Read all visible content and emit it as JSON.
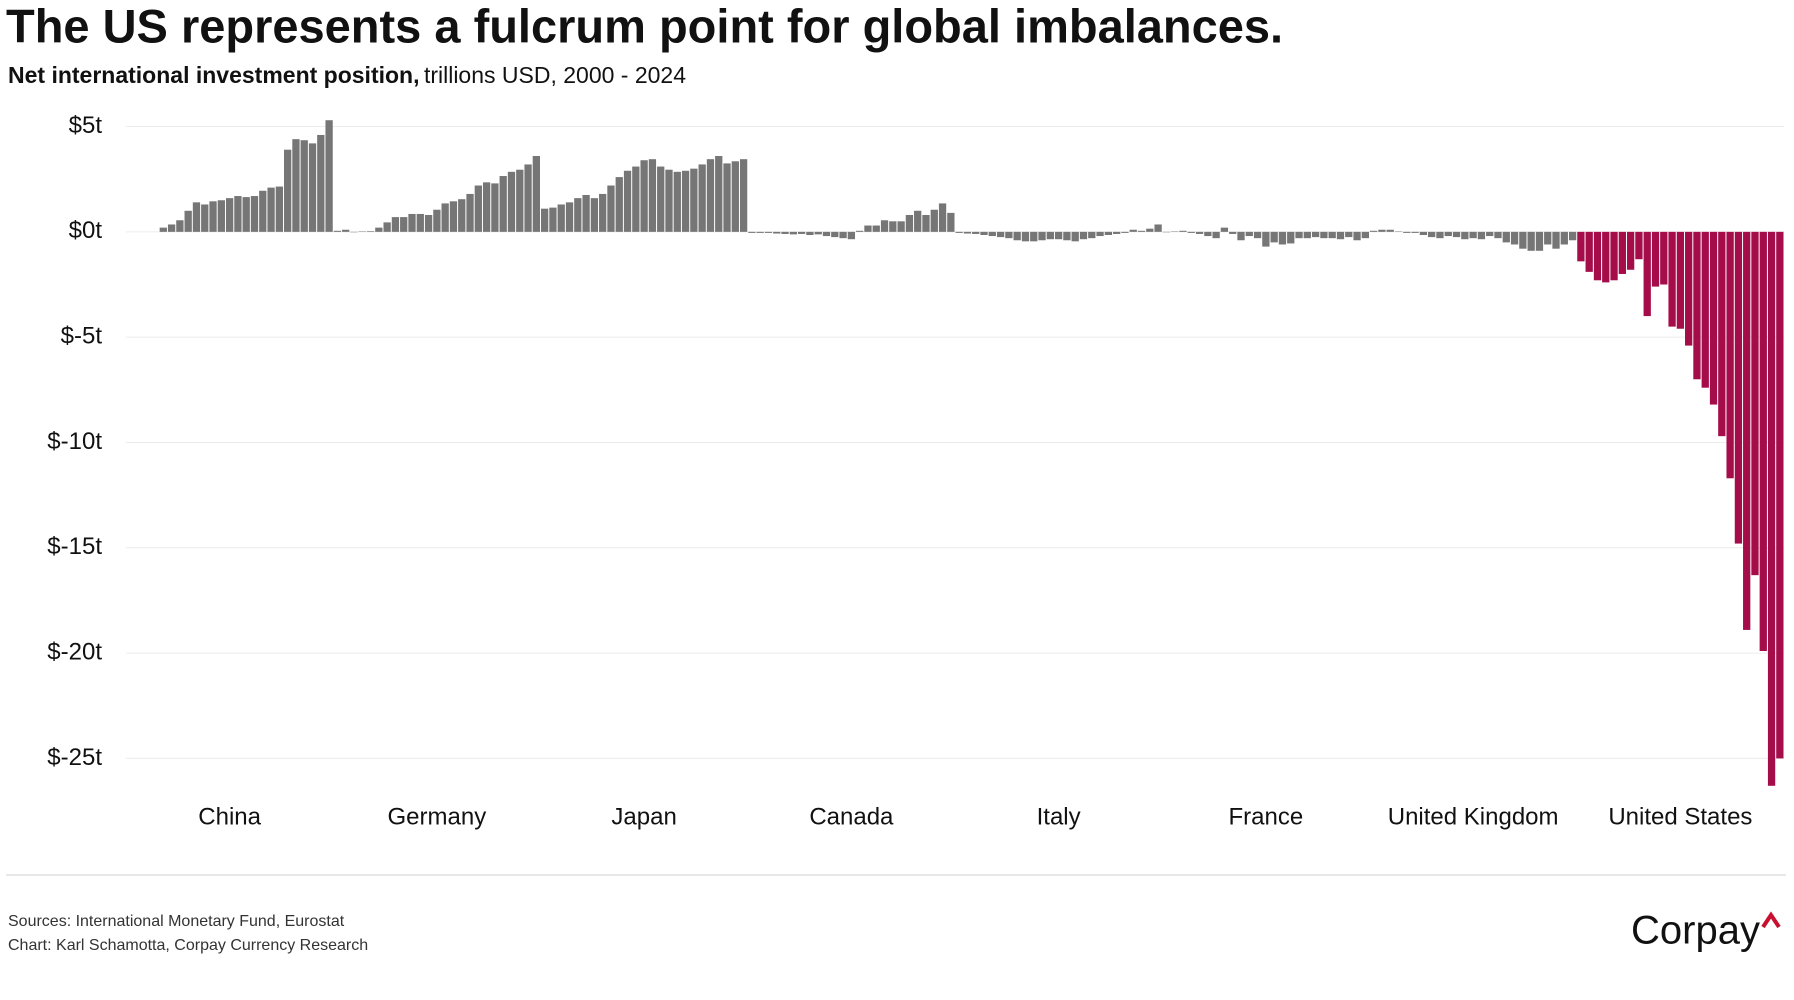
{
  "chart_data": {
    "type": "bar",
    "title": "The US represents a fulcrum point for global imbalances.",
    "subtitle_bold": "Net international investment position,",
    "subtitle": "trillions USD, 2000 - 2024",
    "ylim": [
      -26.5,
      5.5
    ],
    "yticks": [
      {
        "value": 5,
        "label": "$5t"
      },
      {
        "value": 0,
        "label": "$0t"
      },
      {
        "value": -5,
        "label": "$-5t"
      },
      {
        "value": -10,
        "label": "$-10t"
      },
      {
        "value": -15,
        "label": "$-15t"
      },
      {
        "value": -20,
        "label": "$-20t"
      },
      {
        "value": -25,
        "label": "$-25t"
      }
    ],
    "grid": true,
    "groups": [
      {
        "name": "China",
        "color": "#767676",
        "values": [
          null,
          null,
          null,
          null,
          0.2,
          0.35,
          0.55,
          1.0,
          1.4,
          1.3,
          1.45,
          1.5,
          1.6,
          1.7,
          1.65,
          1.7,
          1.95,
          2.1,
          2.15,
          3.9,
          4.4,
          4.35,
          4.2,
          4.6,
          5.3
        ]
      },
      {
        "name": "Germany",
        "color": "#767676",
        "values": [
          0.05,
          0.1,
          -0.02,
          0.02,
          0.03,
          0.2,
          0.45,
          0.7,
          0.7,
          0.85,
          0.85,
          0.8,
          1.05,
          1.35,
          1.45,
          1.55,
          1.8,
          2.2,
          2.35,
          2.3,
          2.65,
          2.85,
          2.95,
          3.2,
          3.6
        ]
      },
      {
        "name": "Japan",
        "color": "#767676",
        "values": [
          1.1,
          1.15,
          1.3,
          1.4,
          1.6,
          1.75,
          1.6,
          1.8,
          2.2,
          2.6,
          2.9,
          3.1,
          3.4,
          3.45,
          3.1,
          2.95,
          2.85,
          2.9,
          3.0,
          3.2,
          3.45,
          3.6,
          3.25,
          3.35,
          3.45
        ]
      },
      {
        "name": "Canada",
        "color": "#767676",
        "values": [
          -0.05,
          -0.05,
          -0.05,
          -0.08,
          -0.1,
          -0.12,
          -0.1,
          -0.15,
          -0.12,
          -0.2,
          -0.25,
          -0.3,
          -0.35,
          0.05,
          0.3,
          0.3,
          0.55,
          0.5,
          0.5,
          0.8,
          1.0,
          0.8,
          1.05,
          1.35,
          0.9
        ]
      },
      {
        "name": "Italy",
        "color": "#767676",
        "values": [
          -0.05,
          -0.08,
          -0.1,
          -0.15,
          -0.2,
          -0.25,
          -0.3,
          -0.4,
          -0.45,
          -0.45,
          -0.4,
          -0.35,
          -0.35,
          -0.4,
          -0.45,
          -0.35,
          -0.3,
          -0.2,
          -0.15,
          -0.1,
          -0.05,
          0.1,
          0.05,
          0.15,
          0.35
        ]
      },
      {
        "name": "France",
        "color": "#767676",
        "values": [
          -0.02,
          0.02,
          0.05,
          -0.05,
          -0.1,
          -0.2,
          -0.3,
          0.2,
          -0.1,
          -0.4,
          -0.2,
          -0.3,
          -0.7,
          -0.5,
          -0.6,
          -0.55,
          -0.3,
          -0.3,
          -0.25,
          -0.3,
          -0.3,
          -0.35,
          -0.25,
          -0.4,
          -0.3
        ]
      },
      {
        "name": "United Kingdom",
        "color": "#767676",
        "values": [
          0.05,
          0.1,
          0.1,
          0.02,
          -0.05,
          -0.05,
          -0.15,
          -0.25,
          -0.3,
          -0.2,
          -0.25,
          -0.35,
          -0.3,
          -0.35,
          -0.2,
          -0.3,
          -0.5,
          -0.6,
          -0.8,
          -0.9,
          -0.9,
          -0.6,
          -0.8,
          -0.6,
          -0.4
        ]
      },
      {
        "name": "United States",
        "color": "#a50d4a",
        "values": [
          -1.4,
          -1.9,
          -2.3,
          -2.4,
          -2.3,
          -2.0,
          -1.8,
          -1.3,
          -4.0,
          -2.6,
          -2.5,
          -4.5,
          -4.6,
          -5.4,
          -7.0,
          -7.4,
          -8.2,
          -9.7,
          -11.7,
          -14.8,
          -18.9,
          -16.3,
          -19.9,
          -26.3,
          -25.0
        ]
      }
    ]
  },
  "footer": {
    "sources": "Sources: International Monetary Fund, Eurostat",
    "credit": "Chart: Karl Schamotta, Corpay Currency Research",
    "logo": "Corpay"
  }
}
